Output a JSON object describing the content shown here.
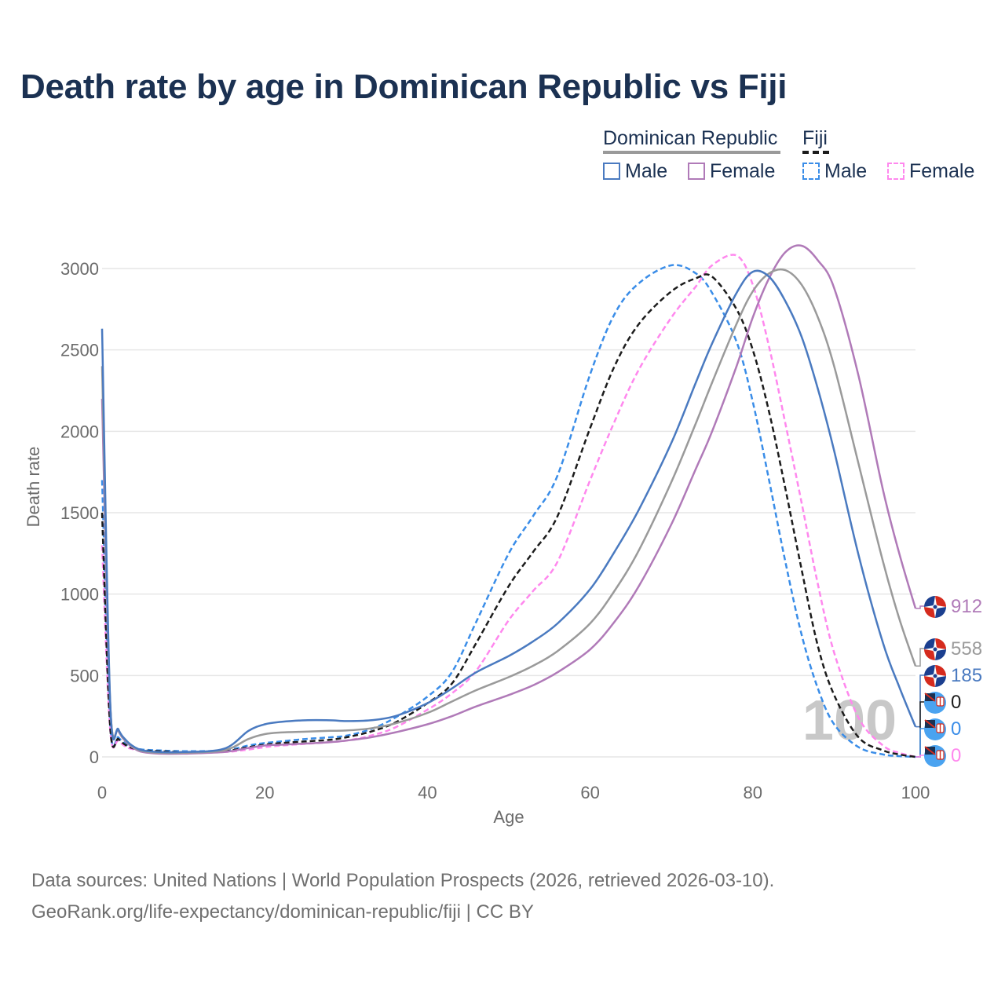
{
  "title": "Death rate by age in Dominican Republic vs Fiji",
  "legend": {
    "group1": "Dominican Republic",
    "group2": "Fiji",
    "items": [
      {
        "label": "Male",
        "color": "#4a7ac0",
        "style": "solid"
      },
      {
        "label": "Female",
        "color": "#b07ab8",
        "style": "solid"
      },
      {
        "label": "Male",
        "color": "#3a8de8",
        "style": "dashed"
      },
      {
        "label": "Female",
        "color": "#ff88ee",
        "style": "dashed"
      }
    ]
  },
  "footer": {
    "line1": "Data sources: United Nations | World Population Prospects (2026, retrieved 2026-03-10).",
    "line2": "GeoRank.org/life-expectancy/dominican-republic/fiji | CC BY"
  },
  "chart_data": {
    "type": "line",
    "xlabel": "Age",
    "ylabel": "Death rate",
    "xlim": [
      0,
      100
    ],
    "ylim": [
      0,
      3000
    ],
    "xticks": [
      0,
      20,
      40,
      60,
      80,
      100
    ],
    "yticks": [
      0,
      500,
      1000,
      1500,
      2000,
      2500,
      3000
    ],
    "watermark": "100",
    "x": [
      0,
      1,
      2,
      3,
      4,
      5,
      7,
      10,
      15,
      18,
      20,
      22,
      25,
      28,
      30,
      33,
      36,
      40,
      43,
      46,
      50,
      53,
      56,
      60,
      63,
      66,
      70,
      73,
      75,
      78,
      80,
      82,
      84,
      86,
      88,
      90,
      93,
      96,
      98,
      100
    ],
    "series": [
      {
        "name": "Dominican Republic Male",
        "color": "#4a7ac0",
        "dash": false,
        "values": [
          2630,
          330,
          170,
          100,
          60,
          40,
          30,
          30,
          50,
          160,
          200,
          215,
          225,
          225,
          220,
          225,
          250,
          330,
          420,
          520,
          620,
          710,
          820,
          1030,
          1260,
          1520,
          1930,
          2300,
          2540,
          2850,
          2980,
          2950,
          2800,
          2580,
          2260,
          1880,
          1240,
          700,
          430,
          185
        ]
      },
      {
        "name": "Dominican Republic Total",
        "color": "#9a9a9a",
        "dash": false,
        "values": [
          2400,
          325,
          165,
          95,
          55,
          35,
          25,
          25,
          40,
          110,
          140,
          150,
          155,
          160,
          162,
          175,
          205,
          270,
          340,
          410,
          490,
          560,
          650,
          820,
          1020,
          1270,
          1690,
          2050,
          2300,
          2660,
          2860,
          2970,
          2990,
          2900,
          2700,
          2400,
          1800,
          1200,
          850,
          558
        ]
      },
      {
        "name": "Dominican Republic Female",
        "color": "#b07ab8",
        "dash": false,
        "values": [
          2200,
          310,
          160,
          90,
          50,
          30,
          20,
          20,
          30,
          55,
          70,
          75,
          82,
          90,
          100,
          120,
          150,
          200,
          250,
          310,
          380,
          440,
          520,
          660,
          830,
          1050,
          1430,
          1770,
          2000,
          2400,
          2700,
          2940,
          3100,
          3140,
          3050,
          2880,
          2340,
          1640,
          1250,
          912
        ]
      },
      {
        "name": "Fiji Male",
        "color": "#3a8de8",
        "dash": true,
        "values": [
          1700,
          200,
          120,
          80,
          55,
          45,
          40,
          35,
          40,
          70,
          85,
          95,
          110,
          120,
          130,
          170,
          240,
          370,
          520,
          830,
          1250,
          1480,
          1730,
          2350,
          2720,
          2910,
          3020,
          2970,
          2850,
          2550,
          2180,
          1700,
          1200,
          750,
          420,
          200,
          60,
          15,
          5,
          0
        ]
      },
      {
        "name": "Fiji Total",
        "color": "#1c1c1c",
        "dash": true,
        "values": [
          1500,
          180,
          110,
          70,
          50,
          40,
          35,
          30,
          35,
          60,
          75,
          85,
          95,
          105,
          120,
          155,
          210,
          330,
          450,
          700,
          1050,
          1260,
          1480,
          2020,
          2400,
          2660,
          2860,
          2940,
          2950,
          2750,
          2500,
          2120,
          1650,
          1150,
          680,
          380,
          120,
          40,
          15,
          0
        ]
      },
      {
        "name": "Fiji Female",
        "color": "#ff88ee",
        "dash": true,
        "values": [
          1300,
          160,
          100,
          60,
          45,
          35,
          30,
          28,
          30,
          45,
          60,
          70,
          80,
          90,
          100,
          130,
          180,
          290,
          390,
          530,
          840,
          1020,
          1200,
          1700,
          2060,
          2380,
          2700,
          2890,
          3020,
          3080,
          2900,
          2520,
          2050,
          1560,
          1060,
          640,
          240,
          70,
          25,
          0
        ]
      }
    ],
    "end_labels": [
      {
        "country": "Dominican Republic",
        "text": "912",
        "color": "#b07ab8"
      },
      {
        "country": "Dominican Republic",
        "text": "558",
        "color": "#9a9a9a"
      },
      {
        "country": "Dominican Republic",
        "text": "185",
        "color": "#4a7ac0"
      },
      {
        "country": "Fiji",
        "text": "0",
        "color": "#1c1c1c"
      },
      {
        "country": "Fiji",
        "text": "0",
        "color": "#3a8de8"
      },
      {
        "country": "Fiji",
        "text": "0",
        "color": "#ff88ee"
      }
    ]
  }
}
